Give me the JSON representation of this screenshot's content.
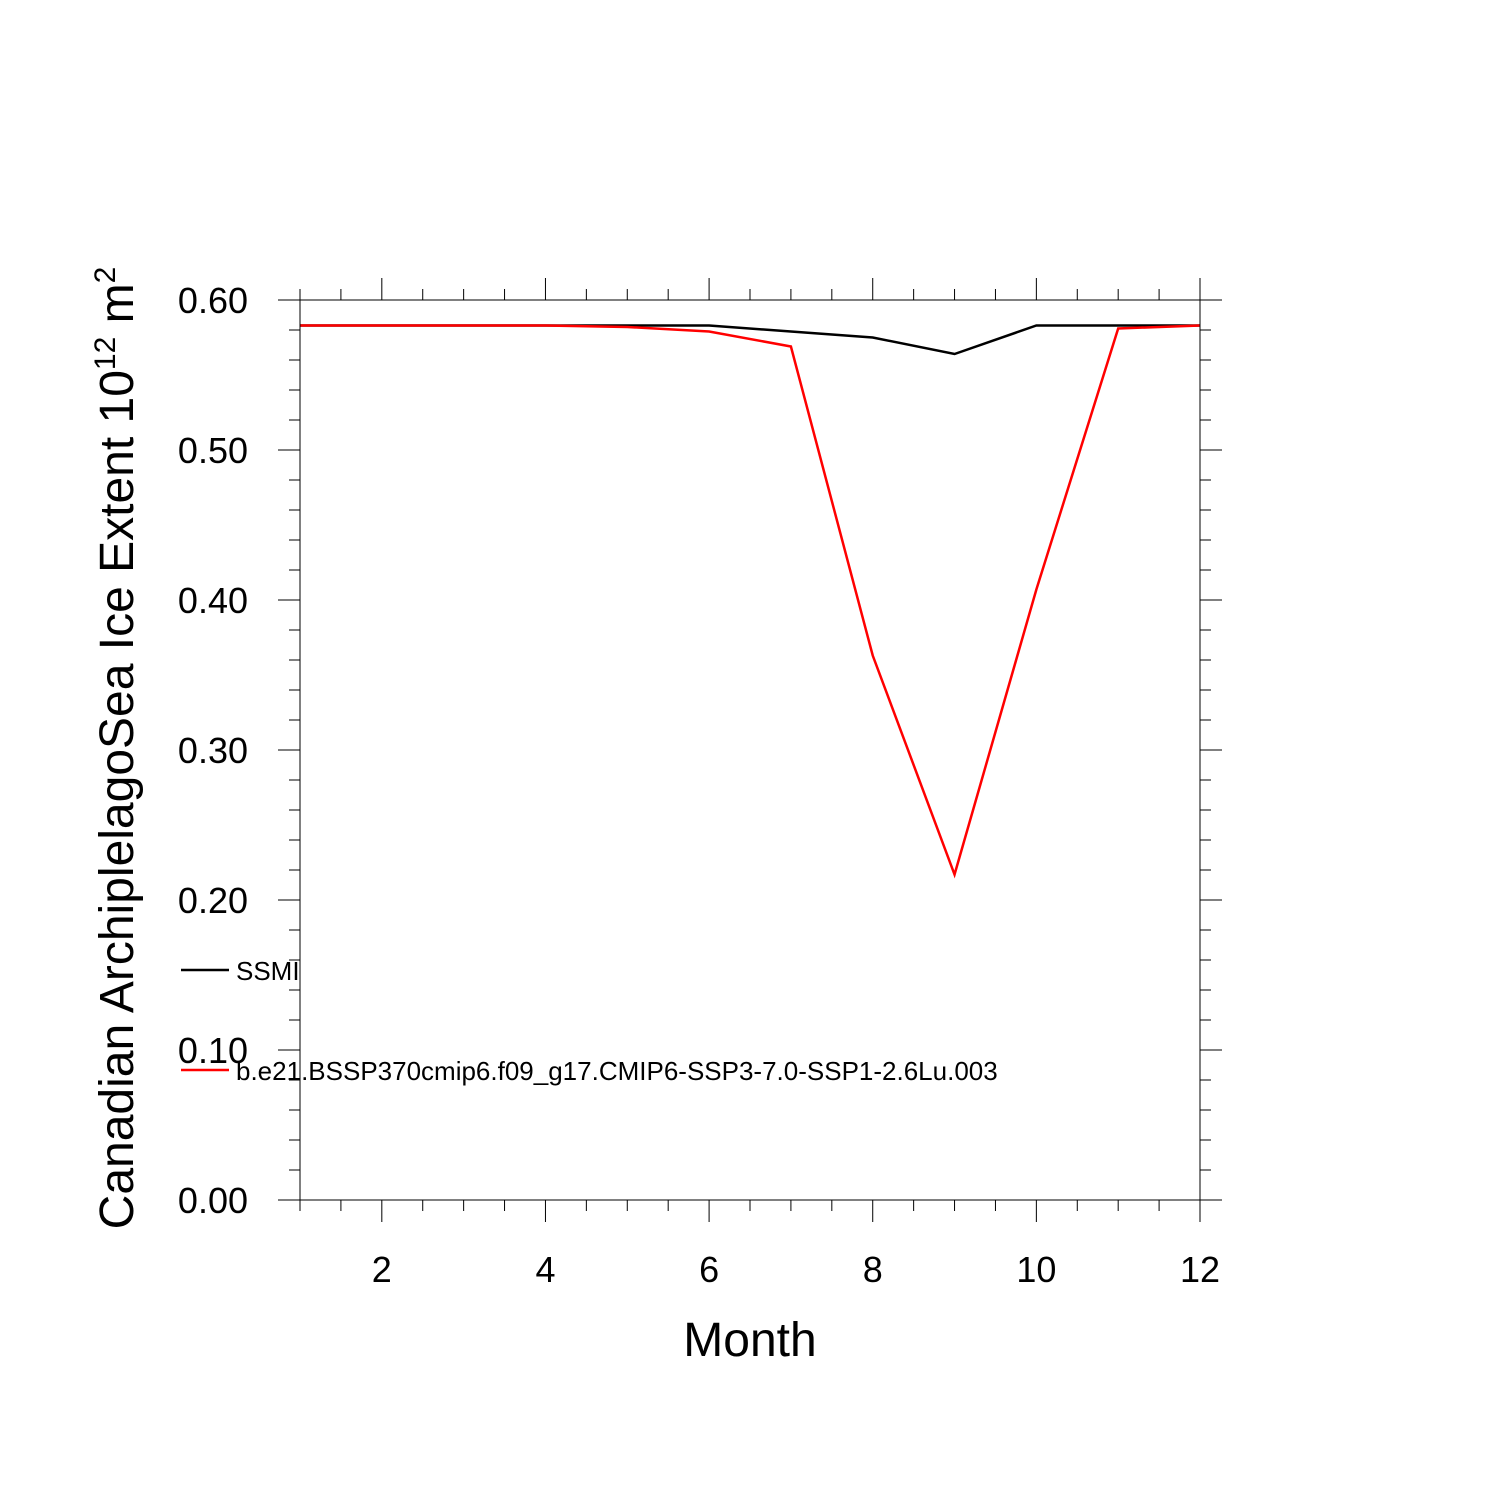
{
  "chart_data": {
    "type": "line",
    "title": "",
    "xlabel": "Month",
    "ylabel": "Canadian ArchiplelagoSea Ice Extent 10",
    "ylabel_exponent": "12",
    "ylabel_unit": " m",
    "ylabel_unit_exponent": "2",
    "xlim": [
      1,
      12
    ],
    "ylim": [
      0,
      0.6
    ],
    "x_ticks": [
      2,
      4,
      6,
      8,
      10,
      12
    ],
    "y_ticks": [
      0.0,
      0.1,
      0.2,
      0.3,
      0.4,
      0.5,
      0.6
    ],
    "y_tick_labels": [
      "0.00",
      "0.10",
      "0.20",
      "0.30",
      "0.40",
      "0.50",
      "0.60"
    ],
    "x": [
      1,
      2,
      3,
      4,
      5,
      6,
      7,
      8,
      9,
      10,
      11,
      12
    ],
    "grid": false,
    "legend_position": "bottom-left",
    "series": [
      {
        "name": "SSMI",
        "color": "#000000",
        "values": [
          0.583,
          0.583,
          0.583,
          0.583,
          0.583,
          0.583,
          0.579,
          0.575,
          0.564,
          0.583,
          0.583,
          0.583
        ]
      },
      {
        "name": "b.e21.BSSP370cmip6.f09_g17.CMIP6-SSP3-7.0-SSP1-2.6Lu.003",
        "color": "#ff0000",
        "values": [
          0.583,
          0.583,
          0.583,
          0.583,
          0.582,
          0.579,
          0.569,
          0.363,
          0.217,
          0.407,
          0.581,
          0.583
        ]
      }
    ]
  }
}
